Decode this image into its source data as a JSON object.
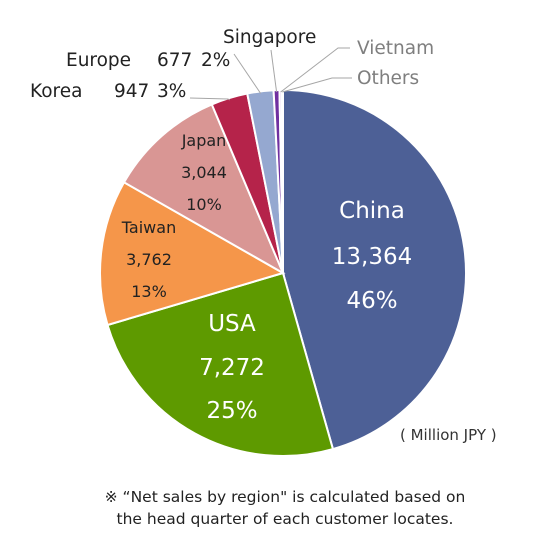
{
  "chart_data": {
    "type": "pie",
    "unit_label": "( Million JPY )",
    "slices": [
      {
        "name": "China",
        "value": 13364,
        "value_label": "13,364",
        "percent_label": "46%",
        "color": "#4d6096"
      },
      {
        "name": "USA",
        "value": 7272,
        "value_label": "7,272",
        "percent_label": "25%",
        "color": "#5e9a00"
      },
      {
        "name": "Taiwan",
        "value": 3762,
        "value_label": "3,762",
        "percent_label": "13%",
        "color": "#f5964a"
      },
      {
        "name": "Japan",
        "value": 3044,
        "value_label": "3,044",
        "percent_label": "10%",
        "color": "#d99694"
      },
      {
        "name": "Korea",
        "value": 947,
        "value_label": "947",
        "percent_label": "3%",
        "color": "#b5234a"
      },
      {
        "name": "Europe",
        "value": 677,
        "value_label": "677",
        "percent_label": "2%",
        "color": "#95a8d0"
      },
      {
        "name": "Singapore",
        "value": 150,
        "value_label": "",
        "percent_label": "",
        "color": "#7030a0"
      },
      {
        "name": "Vietnam",
        "value": 60,
        "value_label": "",
        "percent_label": "",
        "color": "#c9a0dc"
      },
      {
        "name": "Others",
        "value": 30,
        "value_label": "",
        "percent_label": "",
        "color": "#3f3f3f"
      }
    ]
  },
  "footnote": {
    "line1": "※ “Net sales by region\" is calculated based on",
    "line2": "the head quarter of each customer locates."
  }
}
